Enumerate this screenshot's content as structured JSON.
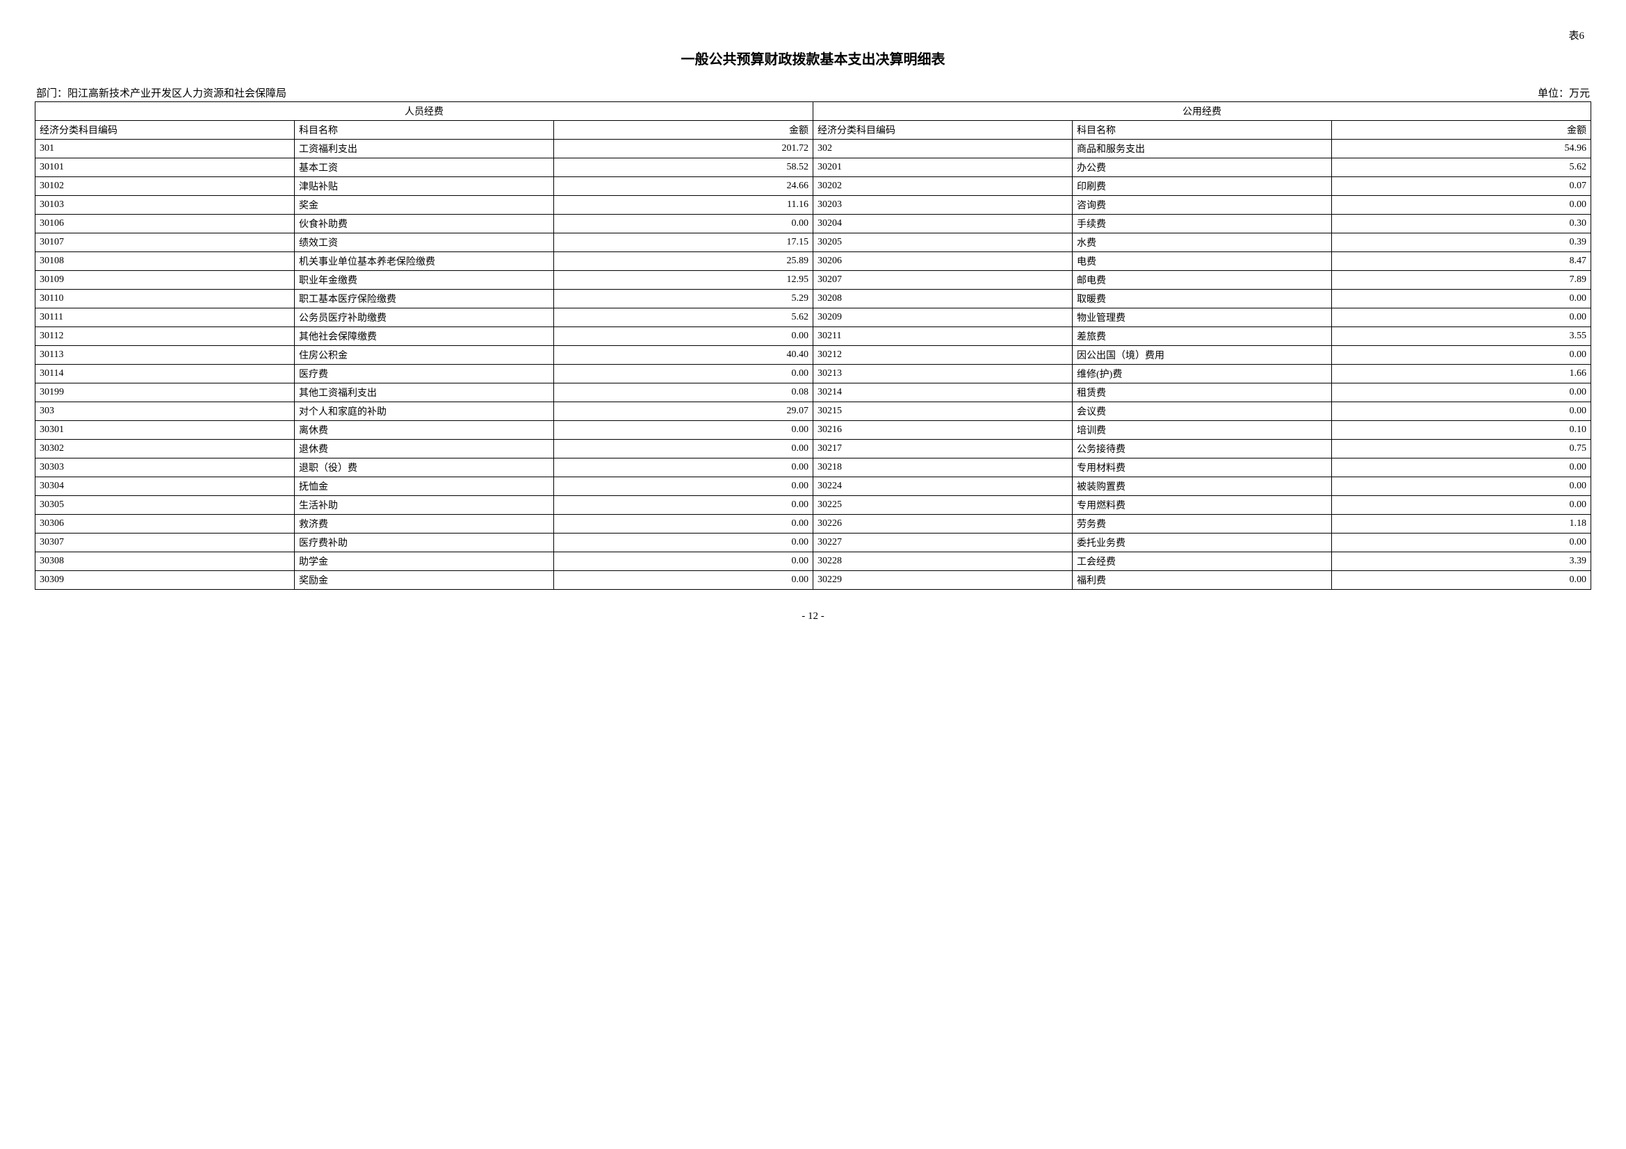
{
  "table_label": "表6",
  "title": "一般公共预算财政拨款基本支出决算明细表",
  "department_prefix": "部门：",
  "department": "阳江高新技术产业开发区人力资源和社会保障局",
  "unit_prefix": "单位：",
  "unit": "万元",
  "page_number": "- 12 -",
  "headers": {
    "left_section": "人员经费",
    "right_section": "公用经费",
    "code": "经济分类科目编码",
    "name": "科目名称",
    "amount": "金额"
  },
  "left_rows": [
    {
      "code": "301",
      "name": "工资福利支出",
      "amount": "201.72"
    },
    {
      "code": "30101",
      "name": "基本工资",
      "amount": "58.52"
    },
    {
      "code": "30102",
      "name": "津贴补贴",
      "amount": "24.66"
    },
    {
      "code": "30103",
      "name": "奖金",
      "amount": "11.16"
    },
    {
      "code": "30106",
      "name": "伙食补助费",
      "amount": "0.00"
    },
    {
      "code": "30107",
      "name": "绩效工资",
      "amount": "17.15"
    },
    {
      "code": "30108",
      "name": "机关事业单位基本养老保险缴费",
      "amount": "25.89"
    },
    {
      "code": "30109",
      "name": "职业年金缴费",
      "amount": "12.95"
    },
    {
      "code": "30110",
      "name": "职工基本医疗保险缴费",
      "amount": "5.29"
    },
    {
      "code": "30111",
      "name": "公务员医疗补助缴费",
      "amount": "5.62"
    },
    {
      "code": "30112",
      "name": "其他社会保障缴费",
      "amount": "0.00"
    },
    {
      "code": "30113",
      "name": "住房公积金",
      "amount": "40.40"
    },
    {
      "code": "30114",
      "name": "医疗费",
      "amount": "0.00"
    },
    {
      "code": "30199",
      "name": "其他工资福利支出",
      "amount": "0.08"
    },
    {
      "code": "303",
      "name": "对个人和家庭的补助",
      "amount": "29.07"
    },
    {
      "code": "30301",
      "name": "离休费",
      "amount": "0.00"
    },
    {
      "code": "30302",
      "name": "退休费",
      "amount": "0.00"
    },
    {
      "code": "30303",
      "name": "退职（役）费",
      "amount": "0.00"
    },
    {
      "code": "30304",
      "name": "抚恤金",
      "amount": "0.00"
    },
    {
      "code": "30305",
      "name": "生活补助",
      "amount": "0.00"
    },
    {
      "code": "30306",
      "name": "救济费",
      "amount": "0.00"
    },
    {
      "code": "30307",
      "name": "医疗费补助",
      "amount": "0.00"
    },
    {
      "code": "30308",
      "name": "助学金",
      "amount": "0.00"
    },
    {
      "code": "30309",
      "name": "奖励金",
      "amount": "0.00"
    }
  ],
  "right_rows": [
    {
      "code": "302",
      "name": "商品和服务支出",
      "amount": "54.96"
    },
    {
      "code": "30201",
      "name": "办公费",
      "amount": "5.62"
    },
    {
      "code": "30202",
      "name": "印刷费",
      "amount": "0.07"
    },
    {
      "code": "30203",
      "name": "咨询费",
      "amount": "0.00"
    },
    {
      "code": "30204",
      "name": "手续费",
      "amount": "0.30"
    },
    {
      "code": "30205",
      "name": "水费",
      "amount": "0.39"
    },
    {
      "code": "30206",
      "name": "电费",
      "amount": "8.47"
    },
    {
      "code": "30207",
      "name": "邮电费",
      "amount": "7.89"
    },
    {
      "code": "30208",
      "name": "取暖费",
      "amount": "0.00"
    },
    {
      "code": "30209",
      "name": "物业管理费",
      "amount": "0.00"
    },
    {
      "code": "30211",
      "name": "差旅费",
      "amount": "3.55"
    },
    {
      "code": "30212",
      "name": "因公出国（境）费用",
      "amount": "0.00"
    },
    {
      "code": "30213",
      "name": "维修(护)费",
      "amount": "1.66"
    },
    {
      "code": "30214",
      "name": "租赁费",
      "amount": "0.00"
    },
    {
      "code": "30215",
      "name": "会议费",
      "amount": "0.00"
    },
    {
      "code": "30216",
      "name": "培训费",
      "amount": "0.10"
    },
    {
      "code": "30217",
      "name": "公务接待费",
      "amount": "0.75"
    },
    {
      "code": "30218",
      "name": "专用材料费",
      "amount": "0.00"
    },
    {
      "code": "30224",
      "name": "被装购置费",
      "amount": "0.00"
    },
    {
      "code": "30225",
      "name": "专用燃料费",
      "amount": "0.00"
    },
    {
      "code": "30226",
      "name": "劳务费",
      "amount": "1.18"
    },
    {
      "code": "30227",
      "name": "委托业务费",
      "amount": "0.00"
    },
    {
      "code": "30228",
      "name": "工会经费",
      "amount": "3.39"
    },
    {
      "code": "30229",
      "name": "福利费",
      "amount": "0.00"
    }
  ]
}
